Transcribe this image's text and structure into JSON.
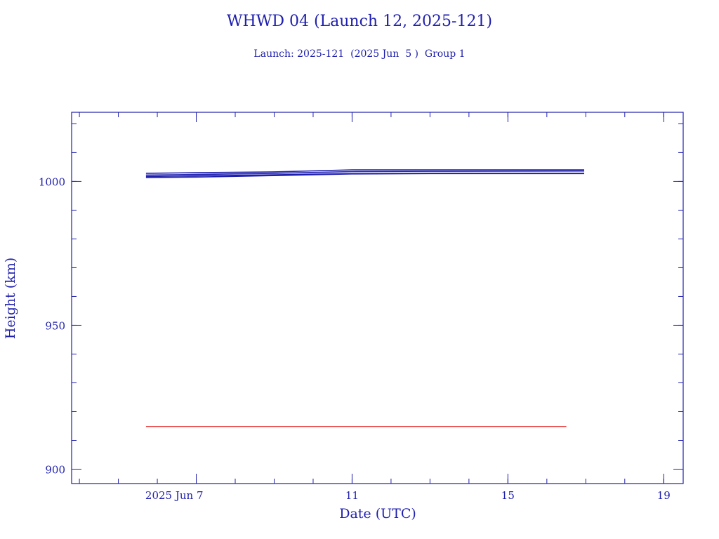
{
  "colors": {
    "axis": "#1f1fae",
    "series": "#1f1fae",
    "reference": "#e00000",
    "background": "#ffffff"
  },
  "chart_data": {
    "type": "line",
    "title": "WHWD 04 (Launch 12, 2025-121)",
    "subtitle": "Launch: 2025-121  (2025 Jun  5 )  Group 1",
    "xlabel": "Date (UTC)",
    "ylabel": "Height (km)",
    "xlim": [
      "2025-06-03T19:12",
      "2025-06-19T12:00"
    ],
    "ylim": [
      895,
      1024
    ],
    "x_tick_labels": [
      {
        "x": "2025-06-07",
        "label": "2025 Jun  7"
      },
      {
        "x": "2025-06-11",
        "label": "11"
      },
      {
        "x": "2025-06-15",
        "label": "15"
      },
      {
        "x": "2025-06-19",
        "label": "19"
      }
    ],
    "y_tick_labels": [
      {
        "y": 900,
        "label": "900"
      },
      {
        "y": 950,
        "label": "950"
      },
      {
        "y": 1000,
        "label": "1000"
      }
    ],
    "x_minor_ticks_days": 1,
    "y_minor_ticks": 10,
    "grid": false,
    "series": [
      {
        "values": [
          [
            "2025-06-05T17:00",
            1002.8
          ],
          [
            "2025-06-07T00:00",
            1003.0
          ],
          [
            "2025-06-09T00:00",
            1003.3
          ],
          [
            "2025-06-11T00:00",
            1004.0
          ],
          [
            "2025-06-13T00:00",
            1004.0
          ],
          [
            "2025-06-16T23:00",
            1004.0
          ]
        ]
      },
      {
        "values": [
          [
            "2025-06-05T17:00",
            1002.2
          ],
          [
            "2025-06-07T00:00",
            1002.4
          ],
          [
            "2025-06-09T00:00",
            1002.8
          ],
          [
            "2025-06-11T00:00",
            1003.4
          ],
          [
            "2025-06-13T00:00",
            1003.5
          ],
          [
            "2025-06-16T23:00",
            1003.6
          ]
        ]
      },
      {
        "values": [
          [
            "2025-06-05T17:00",
            1001.7
          ],
          [
            "2025-06-07T00:00",
            1001.9
          ],
          [
            "2025-06-09T00:00",
            1002.3
          ],
          [
            "2025-06-11T00:00",
            1002.7
          ],
          [
            "2025-06-13T00:00",
            1002.8
          ],
          [
            "2025-06-16T23:00",
            1002.8
          ]
        ]
      },
      {
        "values": [
          [
            "2025-06-05T17:00",
            1001.3
          ],
          [
            "2025-06-07T00:00",
            1001.5
          ],
          [
            "2025-06-09T00:00",
            1002.0
          ],
          [
            "2025-06-11T00:00",
            1002.6
          ],
          [
            "2025-06-13T00:00",
            1002.7
          ],
          [
            "2025-06-16T23:00",
            1002.7
          ]
        ]
      }
    ],
    "reference_line": {
      "color": "red",
      "values": [
        [
          "2025-06-05T17:00",
          914.8
        ],
        [
          "2025-06-16T12:00",
          914.8
        ]
      ]
    }
  }
}
